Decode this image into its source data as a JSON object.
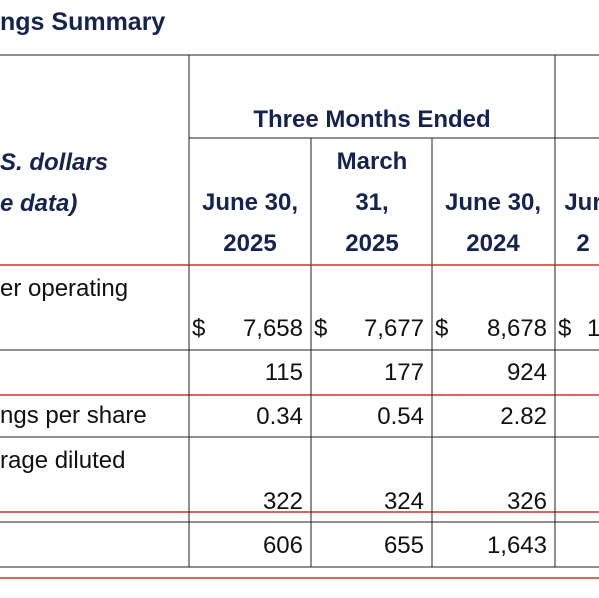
{
  "header": {
    "title": "ngs Summary"
  },
  "table": {
    "group_header": "Three Months Ended",
    "stub_header": [
      "S. dollars",
      "e data)"
    ],
    "columns": [
      [
        "June 30,",
        "2025"
      ],
      [
        "March",
        "31,",
        "2025"
      ],
      [
        "June 30,",
        "2024"
      ],
      [
        "Jur",
        "2"
      ]
    ],
    "rows": [
      {
        "label": [
          "er operating"
        ],
        "cells": [
          [
            "$",
            "7,658"
          ],
          [
            "$",
            "7,677"
          ],
          [
            "$",
            "8,678"
          ],
          [
            "$",
            "1"
          ]
        ]
      },
      {
        "cells": [
          "115",
          "177",
          "924"
        ]
      },
      {
        "label": [
          "ngs per share"
        ],
        "cells": [
          "0.34",
          "0.54",
          "2.82"
        ]
      },
      {
        "label": [
          "rage diluted"
        ],
        "cells": [
          "322",
          "324",
          "326"
        ]
      },
      {
        "cells": [
          "606",
          "655",
          "1,643"
        ]
      }
    ]
  }
}
